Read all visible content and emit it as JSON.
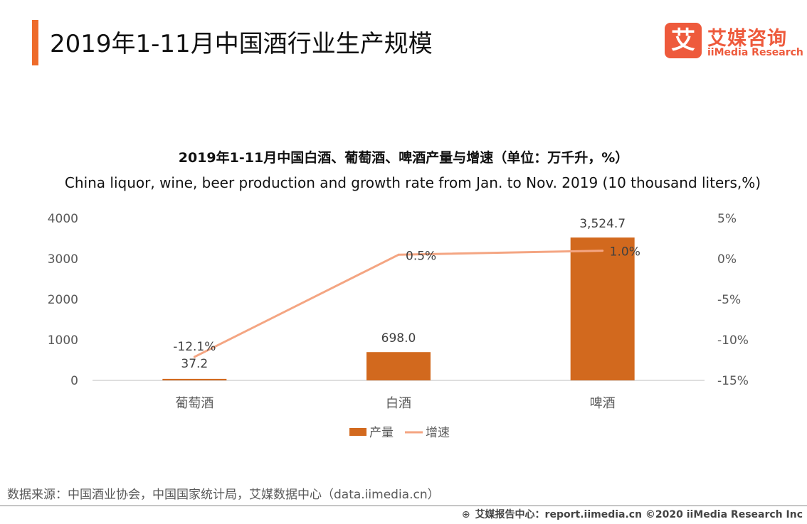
{
  "header": {
    "title": "2019年1-11月中国酒行业生产规模",
    "accent_color": "#ee6b2a"
  },
  "logo": {
    "mark": "艾",
    "cn": "艾媒咨询",
    "en": "iiMedia Research",
    "color": "#ee5a3c"
  },
  "chart_data": {
    "type": "bar",
    "title": "2019年1-11月中国白酒、葡萄酒、啤酒产量与增速（单位：万千升，%）",
    "subtitle": "China liquor, wine, beer production and growth rate from Jan. to Nov. 2019 (10 thousand  liters,%)",
    "categories": [
      "葡萄酒",
      "白酒",
      "啤酒"
    ],
    "series": [
      {
        "name": "产量",
        "type": "bar",
        "axis": "left",
        "values": [
          37.2,
          698.0,
          3524.7
        ],
        "labels": [
          "37.2",
          "698.0",
          "3,524.7"
        ],
        "color": "#d2691e"
      },
      {
        "name": "增速",
        "type": "line",
        "axis": "right",
        "values": [
          -12.1,
          0.5,
          1.0
        ],
        "labels": [
          "-12.1%",
          "0.5%",
          "1.0%"
        ],
        "color": "#f4a582"
      }
    ],
    "y_left": {
      "ylim": [
        0,
        4000
      ],
      "ticks": [
        0,
        1000,
        2000,
        3000,
        4000
      ],
      "tick_labels": [
        "0",
        "1000",
        "2000",
        "3000",
        "4000"
      ]
    },
    "y_right": {
      "ylim": [
        -15,
        5
      ],
      "ticks": [
        -15,
        -10,
        -5,
        0,
        5
      ],
      "tick_labels": [
        "-15%",
        "-10%",
        "-5%",
        "0%",
        "5%"
      ]
    },
    "grid": false,
    "legend_position": "bottom"
  },
  "source": "数据来源：中国酒业协会，中国国家统计局，艾媒数据中心（data.iimedia.cn）",
  "footer": {
    "icon": "globe-icon",
    "text": "艾媒报告中心：report.iimedia.cn  ©2020  iiMedia Research  Inc"
  }
}
